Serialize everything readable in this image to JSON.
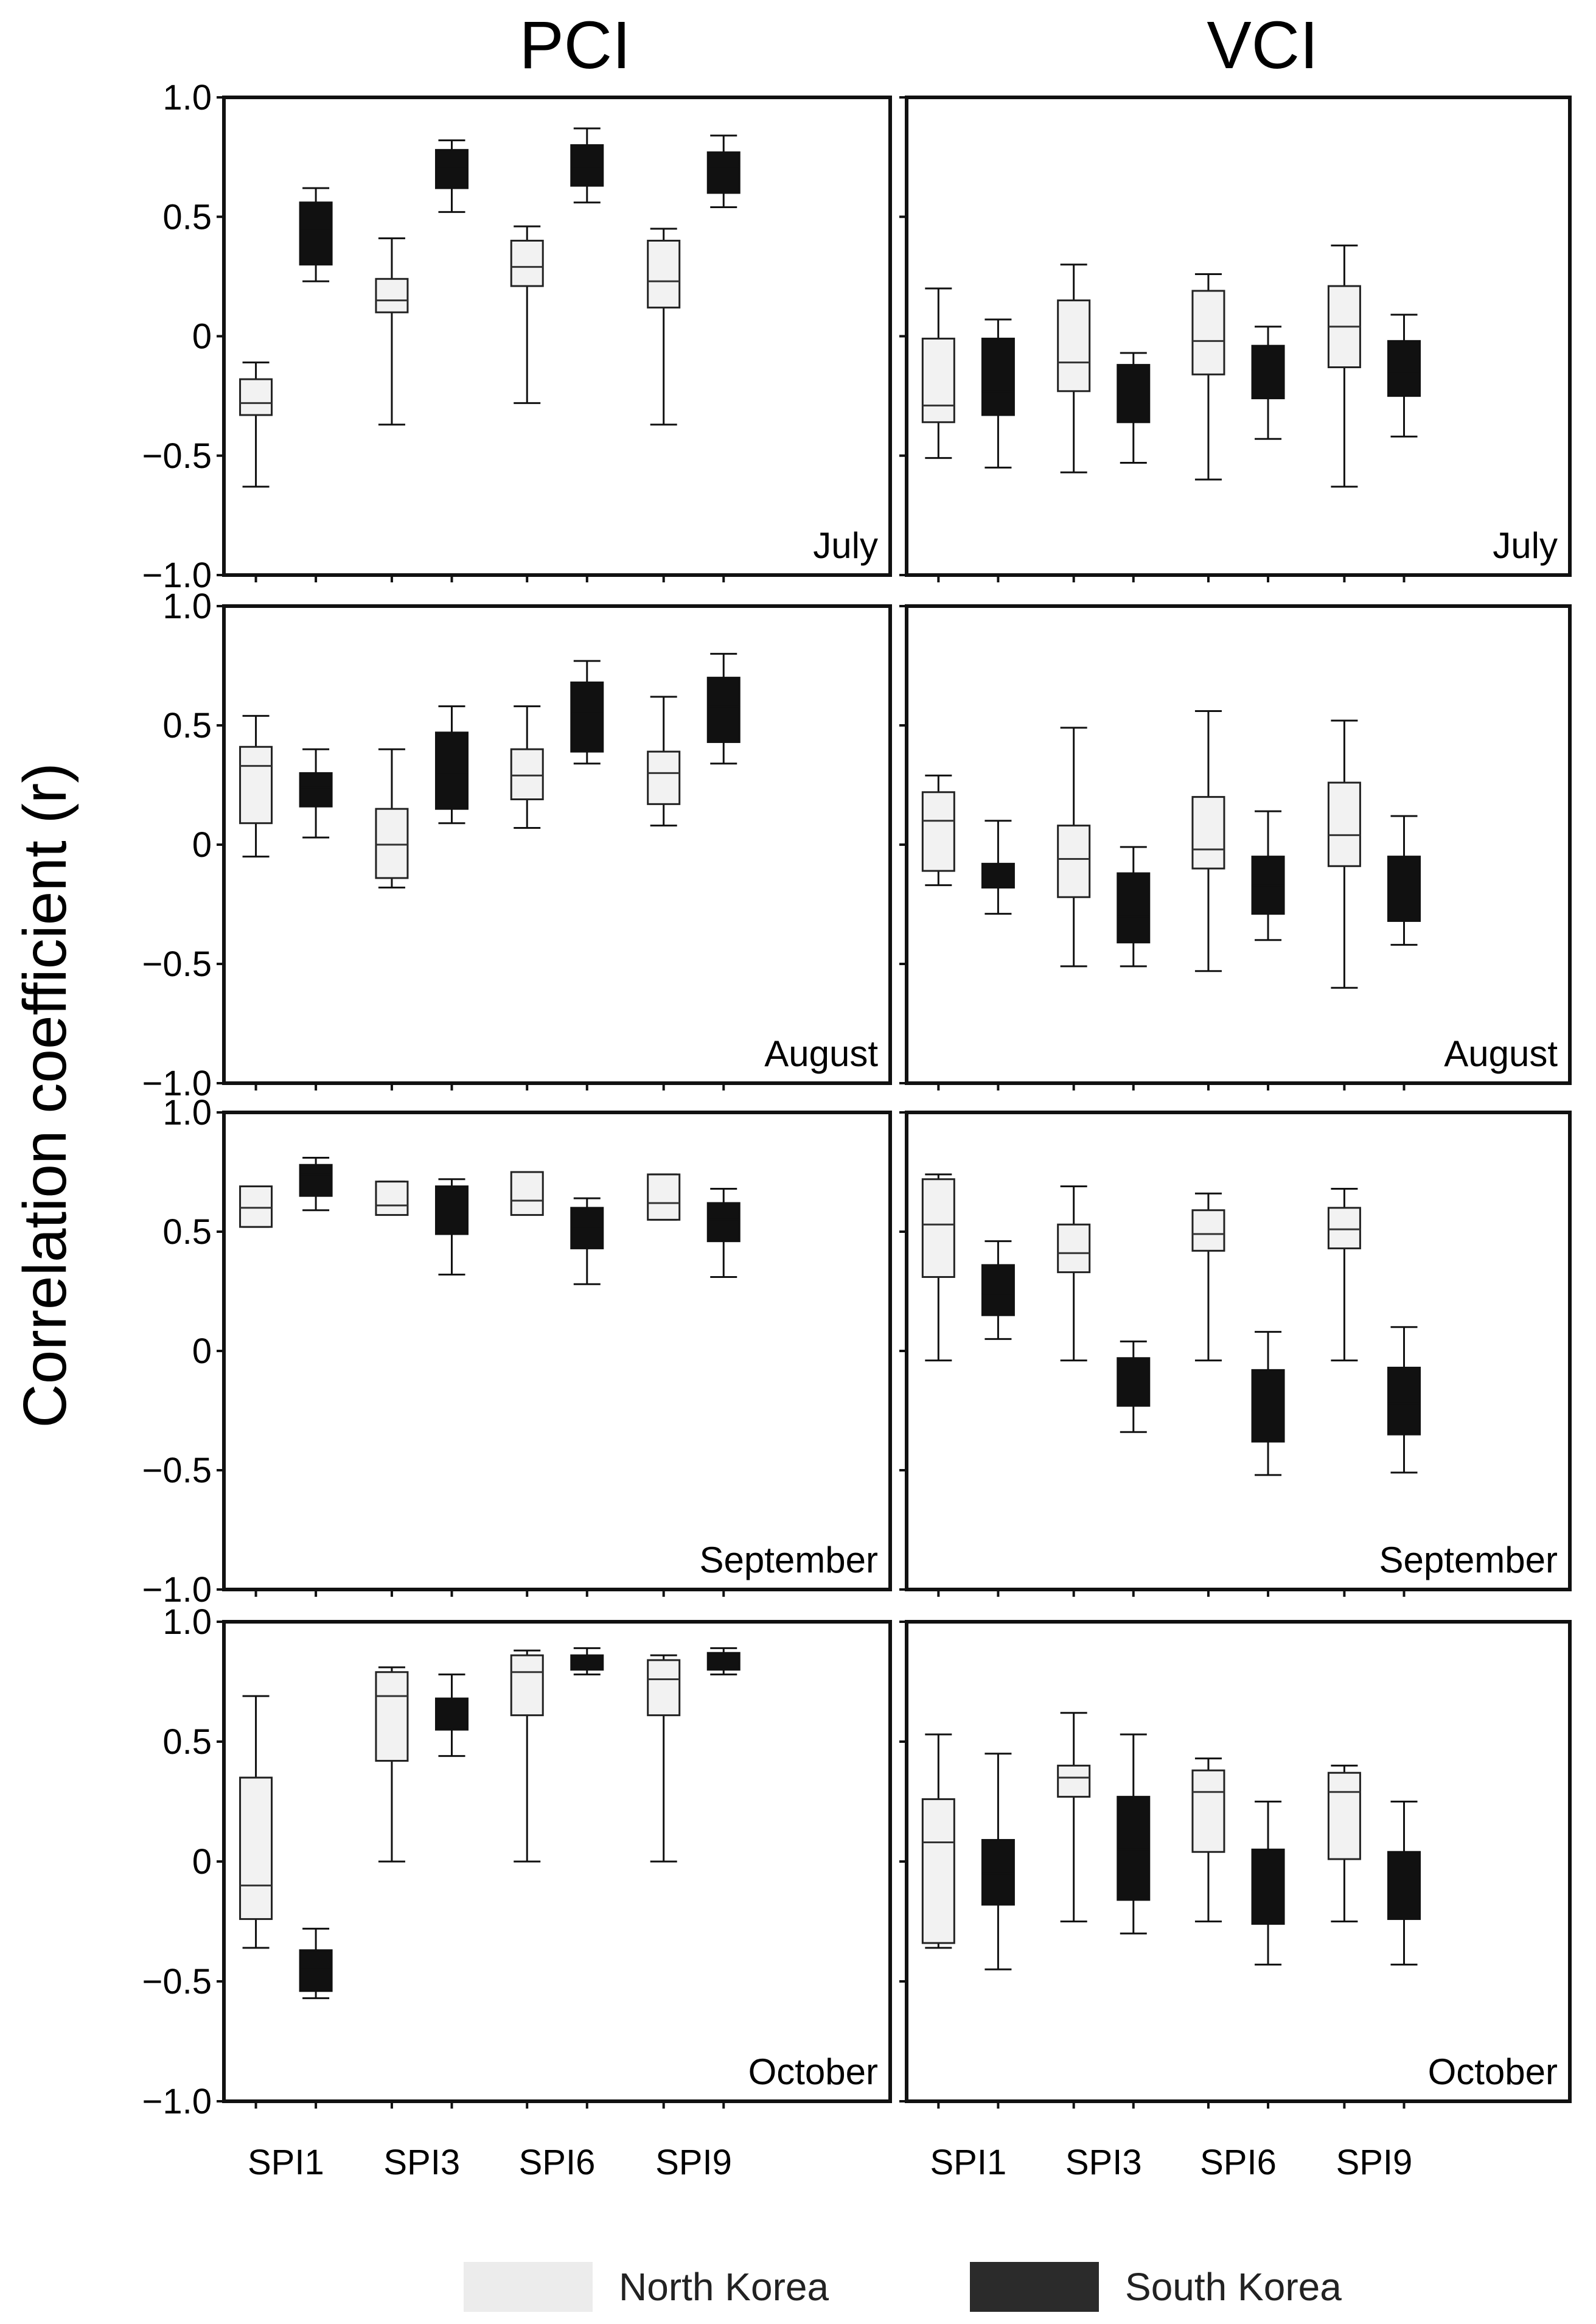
{
  "chart_data": {
    "type": "boxplot",
    "column_titles": [
      "PCI",
      "VCI"
    ],
    "ylabel": "Correlation coefficient (r)",
    "ylim": [
      -1.0,
      1.0
    ],
    "yticks": [
      1.0,
      0.5,
      0,
      -0.5,
      -1.0
    ],
    "ytick_labels": [
      "1.0",
      "0.5",
      "0",
      "−0.5",
      "−1.0"
    ],
    "categories": [
      "SPI1",
      "SPI3",
      "SPI6",
      "SPI9"
    ],
    "legend": [
      {
        "name": "North Korea",
        "color": "#f2f2f2"
      },
      {
        "name": "South Korea",
        "color": "#111111"
      }
    ],
    "panels": [
      {
        "column": "PCI",
        "month": "July",
        "groups": [
          {
            "nk": [
              -0.63,
              -0.33,
              -0.28,
              -0.18,
              -0.11
            ],
            "sk": [
              0.23,
              0.3,
              0.45,
              0.56,
              0.62
            ]
          },
          {
            "nk": [
              -0.37,
              0.1,
              0.15,
              0.24,
              0.41
            ],
            "sk": [
              0.52,
              0.62,
              0.71,
              0.78,
              0.82
            ]
          },
          {
            "nk": [
              -0.28,
              0.21,
              0.29,
              0.4,
              0.46
            ],
            "sk": [
              0.56,
              0.63,
              0.71,
              0.8,
              0.87
            ]
          },
          {
            "nk": [
              -0.37,
              0.12,
              0.23,
              0.4,
              0.45
            ],
            "sk": [
              0.54,
              0.6,
              0.71,
              0.77,
              0.84
            ]
          }
        ]
      },
      {
        "column": "VCI",
        "month": "July",
        "groups": [
          {
            "nk": [
              -0.51,
              -0.36,
              -0.29,
              -0.01,
              0.2
            ],
            "sk": [
              -0.55,
              -0.33,
              -0.23,
              -0.01,
              0.07
            ]
          },
          {
            "nk": [
              -0.57,
              -0.23,
              -0.11,
              0.15,
              0.3
            ],
            "sk": [
              -0.53,
              -0.36,
              -0.28,
              -0.12,
              -0.07
            ]
          },
          {
            "nk": [
              -0.6,
              -0.16,
              -0.02,
              0.19,
              0.26
            ],
            "sk": [
              -0.43,
              -0.26,
              -0.14,
              -0.04,
              0.04
            ]
          },
          {
            "nk": [
              -0.63,
              -0.13,
              0.04,
              0.21,
              0.38
            ],
            "sk": [
              -0.42,
              -0.25,
              -0.15,
              -0.02,
              0.09
            ]
          }
        ]
      },
      {
        "column": "PCI",
        "month": "August",
        "groups": [
          {
            "nk": [
              -0.05,
              0.09,
              0.33,
              0.41,
              0.54
            ],
            "sk": [
              0.03,
              0.16,
              0.24,
              0.3,
              0.4
            ]
          },
          {
            "nk": [
              -0.18,
              -0.14,
              0.0,
              0.15,
              0.4
            ],
            "sk": [
              0.09,
              0.15,
              0.3,
              0.47,
              0.58
            ]
          },
          {
            "nk": [
              0.07,
              0.19,
              0.29,
              0.4,
              0.58
            ],
            "sk": [
              0.34,
              0.39,
              0.55,
              0.68,
              0.77
            ]
          },
          {
            "nk": [
              0.08,
              0.17,
              0.3,
              0.39,
              0.62
            ],
            "sk": [
              0.34,
              0.43,
              0.58,
              0.7,
              0.8
            ]
          }
        ]
      },
      {
        "column": "VCI",
        "month": "August",
        "groups": [
          {
            "nk": [
              -0.17,
              -0.11,
              0.1,
              0.22,
              0.29
            ],
            "sk": [
              -0.29,
              -0.18,
              -0.12,
              -0.08,
              0.1
            ]
          },
          {
            "nk": [
              -0.51,
              -0.22,
              -0.06,
              0.08,
              0.49
            ],
            "sk": [
              -0.51,
              -0.41,
              -0.3,
              -0.12,
              -0.01
            ]
          },
          {
            "nk": [
              -0.53,
              -0.1,
              -0.02,
              0.2,
              0.56
            ],
            "sk": [
              -0.4,
              -0.29,
              -0.17,
              -0.05,
              0.14
            ]
          },
          {
            "nk": [
              -0.6,
              -0.09,
              0.04,
              0.26,
              0.52
            ],
            "sk": [
              -0.42,
              -0.32,
              -0.2,
              -0.05,
              0.12
            ]
          }
        ]
      },
      {
        "column": "PCI",
        "month": "September",
        "groups": [
          {
            "nk": [
              0.52,
              0.52,
              0.6,
              0.69,
              0.69
            ],
            "sk": [
              0.59,
              0.65,
              0.74,
              0.78,
              0.81
            ]
          },
          {
            "nk": [
              0.57,
              0.57,
              0.61,
              0.71,
              0.71
            ],
            "sk": [
              0.32,
              0.49,
              0.57,
              0.69,
              0.72
            ]
          },
          {
            "nk": [
              0.57,
              0.57,
              0.63,
              0.75,
              0.75
            ],
            "sk": [
              0.28,
              0.43,
              0.52,
              0.6,
              0.64
            ]
          },
          {
            "nk": [
              0.55,
              0.55,
              0.62,
              0.74,
              0.74
            ],
            "sk": [
              0.31,
              0.46,
              0.55,
              0.62,
              0.68
            ]
          }
        ]
      },
      {
        "column": "VCI",
        "month": "September",
        "groups": [
          {
            "nk": [
              -0.04,
              0.31,
              0.53,
              0.72,
              0.74
            ],
            "sk": [
              0.05,
              0.15,
              0.24,
              0.36,
              0.46
            ]
          },
          {
            "nk": [
              -0.04,
              0.33,
              0.41,
              0.53,
              0.69
            ],
            "sk": [
              -0.34,
              -0.23,
              -0.13,
              -0.03,
              0.04
            ]
          },
          {
            "nk": [
              -0.04,
              0.42,
              0.49,
              0.59,
              0.66
            ],
            "sk": [
              -0.52,
              -0.38,
              -0.25,
              -0.08,
              0.08
            ]
          },
          {
            "nk": [
              -0.04,
              0.43,
              0.51,
              0.6,
              0.68
            ],
            "sk": [
              -0.51,
              -0.35,
              -0.22,
              -0.07,
              0.1
            ]
          }
        ]
      },
      {
        "column": "PCI",
        "month": "October",
        "groups": [
          {
            "nk": [
              -0.36,
              -0.24,
              -0.1,
              0.35,
              0.69
            ],
            "sk": [
              -0.57,
              -0.54,
              -0.45,
              -0.37,
              -0.28
            ]
          },
          {
            "nk": [
              0.0,
              0.42,
              0.69,
              0.79,
              0.81
            ],
            "sk": [
              0.44,
              0.55,
              0.62,
              0.68,
              0.78
            ]
          },
          {
            "nk": [
              0.0,
              0.61,
              0.79,
              0.86,
              0.88
            ],
            "sk": [
              0.78,
              0.8,
              0.83,
              0.86,
              0.89
            ]
          },
          {
            "nk": [
              0.0,
              0.61,
              0.76,
              0.84,
              0.86
            ],
            "sk": [
              0.78,
              0.8,
              0.84,
              0.87,
              0.89
            ]
          }
        ]
      },
      {
        "column": "VCI",
        "month": "October",
        "groups": [
          {
            "nk": [
              -0.36,
              -0.34,
              0.08,
              0.26,
              0.53
            ],
            "sk": [
              -0.45,
              -0.18,
              -0.05,
              0.09,
              0.45
            ]
          },
          {
            "nk": [
              -0.25,
              0.27,
              0.35,
              0.4,
              0.62
            ],
            "sk": [
              -0.3,
              -0.16,
              0.05,
              0.27,
              0.53
            ]
          },
          {
            "nk": [
              -0.25,
              0.04,
              0.29,
              0.38,
              0.43
            ],
            "sk": [
              -0.43,
              -0.26,
              -0.12,
              0.05,
              0.25
            ]
          },
          {
            "nk": [
              -0.25,
              0.01,
              0.29,
              0.37,
              0.4
            ],
            "sk": [
              -0.43,
              -0.24,
              -0.12,
              0.04,
              0.25
            ]
          }
        ]
      }
    ]
  }
}
